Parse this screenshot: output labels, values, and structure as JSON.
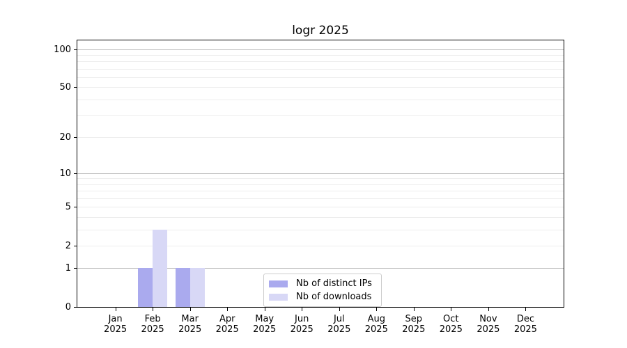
{
  "chart_data": {
    "type": "bar",
    "title": "logr 2025",
    "categories": [
      "Jan 2025",
      "Feb 2025",
      "Mar 2025",
      "Apr 2025",
      "May 2025",
      "Jun 2025",
      "Jul 2025",
      "Aug 2025",
      "Sep 2025",
      "Oct 2025",
      "Nov 2025",
      "Dec 2025"
    ],
    "series": [
      {
        "name": "Nb of distinct IPs",
        "color": "#aaaaee",
        "values": [
          0,
          1,
          1,
          0,
          0,
          0,
          0,
          0,
          0,
          0,
          0,
          0
        ]
      },
      {
        "name": "Nb of downloads",
        "color": "#d8d8f6",
        "values": [
          0,
          3,
          1,
          0,
          0,
          0,
          0,
          0,
          0,
          0,
          0,
          0
        ]
      }
    ],
    "xlabel": "",
    "ylabel": "",
    "y_axis": {
      "scale": "log1p",
      "tick_labels": [
        "0",
        "1",
        "2",
        "5",
        "10",
        "20",
        "50",
        "100"
      ],
      "tick_values": [
        0,
        1,
        2,
        5,
        10,
        20,
        50,
        100
      ],
      "major_gridlines": [
        1,
        10,
        100
      ],
      "minor_gridlines": [
        2,
        3,
        4,
        5,
        6,
        7,
        8,
        9,
        20,
        30,
        40,
        50,
        60,
        70,
        80,
        90
      ],
      "range": [
        0,
        117
      ]
    },
    "grid": "horizontal",
    "legend_position": "inside-bottom-center",
    "colors": {
      "major_grid": "#bdbdbd",
      "minor_grid": "#ededed",
      "spine": "#000000",
      "legend_border": "#cccccc"
    }
  }
}
